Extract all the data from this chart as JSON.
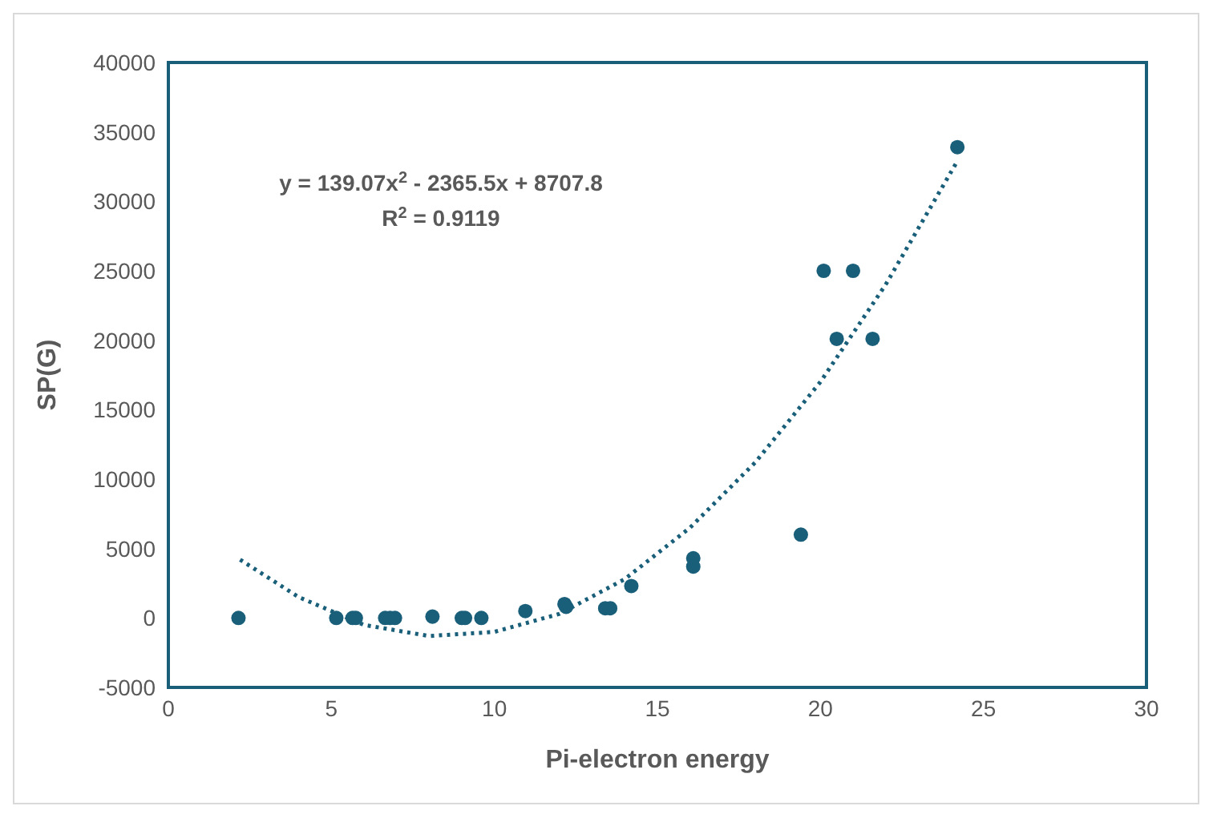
{
  "chart_data": {
    "type": "scatter",
    "xlabel": "Pi-electron energy",
    "ylabel": "SP(G)",
    "xlim": [
      0,
      30
    ],
    "xticks": [
      0,
      5,
      10,
      15,
      20,
      25,
      30
    ],
    "ylim": [
      -5000,
      40000
    ],
    "yticks": [
      -5000,
      0,
      5000,
      10000,
      15000,
      20000,
      25000,
      30000,
      35000,
      40000
    ],
    "grid": false,
    "legend": false,
    "annotations": [
      "y = 139.07x$^{2}$ - 2365.5x + 8707.8",
      "R$^{2}$ = 0.9119"
    ],
    "series": [
      {
        "type": "scatter",
        "color": "#1a5f7a",
        "marker": "circle",
        "x": [
          2.15,
          5.15,
          5.65,
          5.75,
          6.65,
          6.8,
          6.95,
          8.1,
          9,
          9.1,
          9.6,
          10.95,
          12.15,
          12.2,
          13.4,
          13.55,
          14.2,
          16.1,
          16.1,
          19.4,
          20.1,
          20.5,
          21,
          21.6,
          24.2
        ],
        "values": [
          0,
          0,
          0,
          0,
          0,
          0,
          0,
          100,
          0,
          0,
          0,
          500,
          1000,
          800,
          700,
          700,
          2300,
          4300,
          3700,
          6000,
          25000,
          20100,
          25000,
          20100,
          33900
        ]
      },
      {
        "type": "line",
        "color": "#1a5f7a",
        "line_style": "dotted",
        "marker": "none",
        "x": [
          2.2,
          4,
          6,
          8,
          10,
          12,
          14,
          16,
          18,
          20,
          22,
          24.2
        ],
        "values": [
          4200,
          1500,
          -500,
          -1300,
          -1000,
          300,
          2800,
          6500,
          11200,
          17000,
          24000,
          32900
        ]
      }
    ]
  }
}
